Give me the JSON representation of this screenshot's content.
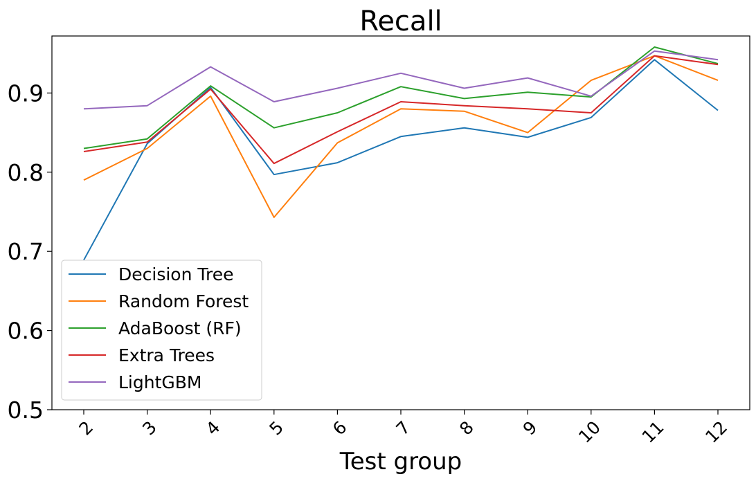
{
  "chart_data": {
    "type": "line",
    "title": "Recall",
    "xlabel": "Test group",
    "ylabel": "",
    "categories": [
      "2",
      "3",
      "4",
      "5",
      "6",
      "7",
      "8",
      "9",
      "10",
      "11",
      "12"
    ],
    "ylim": [
      0.5,
      0.972
    ],
    "yticks": [
      "0.5",
      "0.6",
      "0.7",
      "0.8",
      "0.9"
    ],
    "grid": false,
    "legend_position": "lower-left",
    "series": [
      {
        "name": "Decision Tree",
        "color": "#1f77b4",
        "values": [
          0.689,
          0.836,
          0.907,
          0.797,
          0.812,
          0.845,
          0.856,
          0.844,
          0.869,
          0.942,
          0.878
        ]
      },
      {
        "name": "Random Forest",
        "color": "#ff7f0e",
        "values": [
          0.79,
          0.83,
          0.896,
          0.743,
          0.837,
          0.88,
          0.877,
          0.85,
          0.916,
          0.947,
          0.916
        ]
      },
      {
        "name": "AdaBoost (RF)",
        "color": "#2ca02c",
        "values": [
          0.83,
          0.842,
          0.909,
          0.856,
          0.875,
          0.908,
          0.893,
          0.901,
          0.895,
          0.958,
          0.937
        ]
      },
      {
        "name": "Extra Trees",
        "color": "#d62728",
        "values": [
          0.826,
          0.838,
          0.905,
          0.811,
          0.851,
          0.889,
          0.884,
          0.88,
          0.875,
          0.947,
          0.936
        ]
      },
      {
        "name": "LightGBM",
        "color": "#9467bd",
        "values": [
          0.88,
          0.884,
          0.933,
          0.889,
          0.906,
          0.925,
          0.906,
          0.919,
          0.896,
          0.953,
          0.942
        ]
      }
    ]
  }
}
